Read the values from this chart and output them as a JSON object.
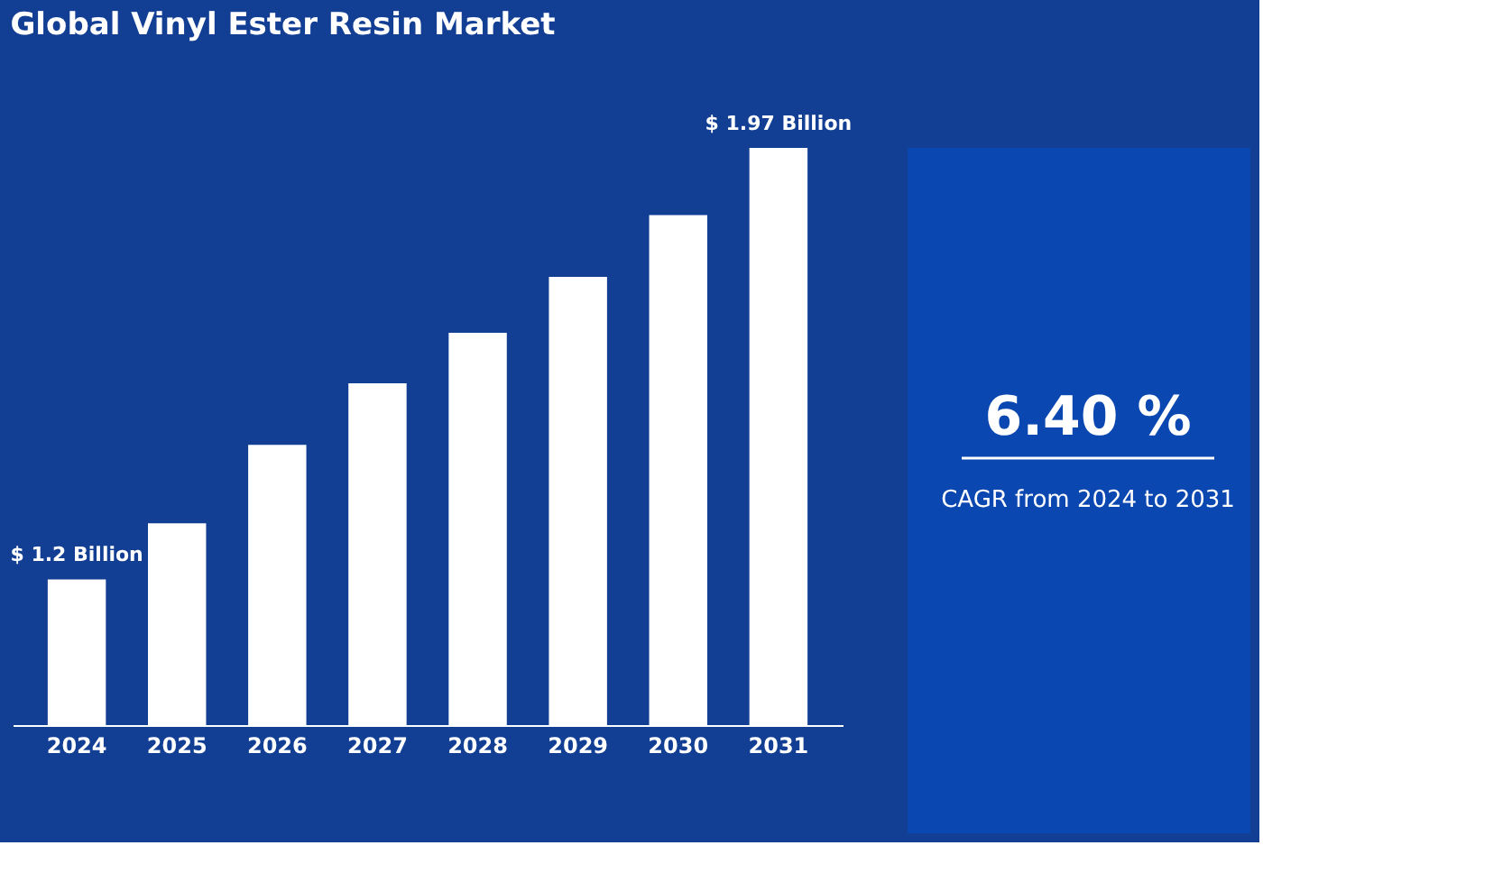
{
  "chart_data": [
    {
      "type": "bar",
      "title": "Global Vinyl Ester Resin Market",
      "color": "#ffffff",
      "ylim": [
        0.94,
        1.97
      ],
      "categories": [
        "2024",
        "2025",
        "2026",
        "2027",
        "2028",
        "2029",
        "2030",
        "2031"
      ],
      "values": [
        1.2,
        1.3,
        1.44,
        1.55,
        1.64,
        1.74,
        1.85,
        1.97
      ],
      "value_labels": [
        "$ 1.2 Billion",
        null,
        null,
        null,
        null,
        null,
        null,
        "$ 1.97 Billion"
      ]
    },
    {
      "type": "other",
      "annotations": [
        "6.40 %",
        "CAGR from 2024 to 2031"
      ]
    }
  ]
}
